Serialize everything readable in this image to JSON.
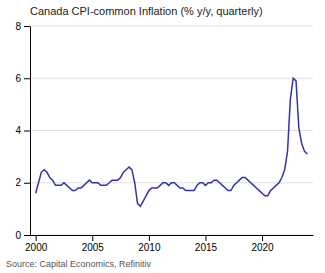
{
  "chart_data": {
    "type": "line",
    "title": "Canada CPI-common Inflation (% y/y, quarterly)",
    "annotations": [
      "Source: Capital Economics, Refinitiv"
    ],
    "color": "#3333aa",
    "x": [
      2000.0,
      2000.25,
      2000.5,
      2000.75,
      2001.0,
      2001.25,
      2001.5,
      2001.75,
      2002.0,
      2002.25,
      2002.5,
      2002.75,
      2003.0,
      2003.25,
      2003.5,
      2003.75,
      2004.0,
      2004.25,
      2004.5,
      2004.75,
      2005.0,
      2005.25,
      2005.5,
      2005.75,
      2006.0,
      2006.25,
      2006.5,
      2006.75,
      2007.0,
      2007.25,
      2007.5,
      2007.75,
      2008.0,
      2008.25,
      2008.5,
      2008.75,
      2009.0,
      2009.25,
      2009.5,
      2009.75,
      2010.0,
      2010.25,
      2010.5,
      2010.75,
      2011.0,
      2011.25,
      2011.5,
      2011.75,
      2012.0,
      2012.25,
      2012.5,
      2012.75,
      2013.0,
      2013.25,
      2013.5,
      2013.75,
      2014.0,
      2014.25,
      2014.5,
      2014.75,
      2015.0,
      2015.25,
      2015.5,
      2015.75,
      2016.0,
      2016.25,
      2016.5,
      2016.75,
      2017.0,
      2017.25,
      2017.5,
      2017.75,
      2018.0,
      2018.25,
      2018.5,
      2018.75,
      2019.0,
      2019.25,
      2019.5,
      2019.75,
      2020.0,
      2020.25,
      2020.5,
      2020.75,
      2021.0,
      2021.25,
      2021.5,
      2021.75,
      2022.0,
      2022.25,
      2022.5,
      2022.75,
      2023.0,
      2023.25,
      2023.5,
      2023.75,
      2024.0
    ],
    "values": [
      1.6,
      2.0,
      2.4,
      2.5,
      2.4,
      2.2,
      2.1,
      1.9,
      1.9,
      1.9,
      2.0,
      1.9,
      1.8,
      1.7,
      1.7,
      1.8,
      1.8,
      1.9,
      2.0,
      2.1,
      2.0,
      2.0,
      2.0,
      1.9,
      1.9,
      1.9,
      2.0,
      2.1,
      2.1,
      2.1,
      2.2,
      2.4,
      2.5,
      2.6,
      2.5,
      2.0,
      1.2,
      1.1,
      1.3,
      1.5,
      1.7,
      1.8,
      1.8,
      1.8,
      1.9,
      2.0,
      2.0,
      1.9,
      2.0,
      2.0,
      1.9,
      1.8,
      1.8,
      1.7,
      1.7,
      1.7,
      1.7,
      1.9,
      2.0,
      2.0,
      1.9,
      2.0,
      2.0,
      2.1,
      2.1,
      2.0,
      1.9,
      1.8,
      1.7,
      1.7,
      1.9,
      2.0,
      2.1,
      2.2,
      2.2,
      2.1,
      2.0,
      1.9,
      1.8,
      1.7,
      1.6,
      1.5,
      1.5,
      1.7,
      1.8,
      1.9,
      2.0,
      2.2,
      2.5,
      3.2,
      5.2,
      6.0,
      5.9,
      4.1,
      3.5,
      3.2,
      3.1
    ],
    "xlim": [
      1999.5,
      2024.5
    ],
    "xticks": [
      2000,
      2005,
      2010,
      2015,
      2020
    ],
    "ylim": [
      0,
      8
    ],
    "yticks": [
      0,
      2,
      4,
      6,
      8
    ],
    "grid": true
  }
}
